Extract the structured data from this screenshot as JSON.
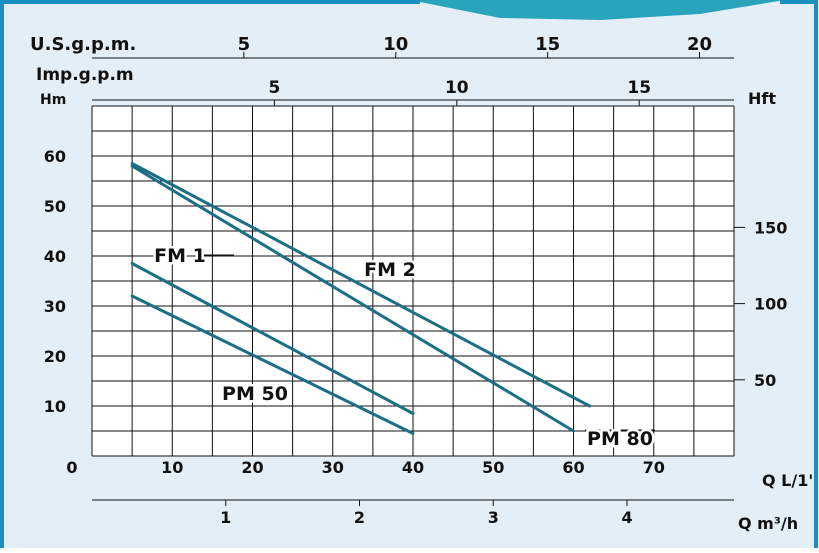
{
  "colors": {
    "background": "#e4eef6",
    "frame": "#1a8fc0",
    "curve": "#1c6e86",
    "grid": "#111111"
  },
  "chart_data": {
    "type": "line",
    "axes": {
      "x_primary": {
        "label": "Q L/1'",
        "range": [
          0,
          80
        ],
        "ticks": [
          0,
          10,
          20,
          30,
          40,
          50,
          60,
          70
        ]
      },
      "x_m3h": {
        "label": "Q m³/h",
        "ticks": [
          1,
          2,
          3,
          4
        ],
        "lpm_per_unit": 16.667
      },
      "x_usgpm": {
        "label": "U.S.g.p.m.",
        "ticks": [
          5,
          10,
          15,
          20
        ],
        "lpm_per_unit": 3.785
      },
      "x_impgpm": {
        "label": "Imp.g.p.m",
        "ticks": [
          5,
          10,
          15
        ],
        "lpm_per_unit": 4.546
      },
      "y_primary": {
        "label": "Hm",
        "range": [
          0,
          70
        ],
        "ticks": [
          10,
          20,
          30,
          40,
          50,
          60
        ]
      },
      "y_feet": {
        "label": "Hft",
        "ticks": [
          50,
          100,
          150
        ],
        "m_per_unit": 0.3048
      }
    },
    "grid": true,
    "series": [
      {
        "name": "FM 1",
        "x": [
          5,
          40
        ],
        "y": [
          38.5,
          8.5
        ]
      },
      {
        "name": "PM 50",
        "x": [
          5,
          40
        ],
        "y": [
          32,
          4.5
        ]
      },
      {
        "name": "FM 2",
        "x": [
          5,
          62
        ],
        "y": [
          58.5,
          10
        ]
      },
      {
        "name": "PM 80",
        "x": [
          5,
          60
        ],
        "y": [
          58,
          5
        ]
      }
    ]
  }
}
